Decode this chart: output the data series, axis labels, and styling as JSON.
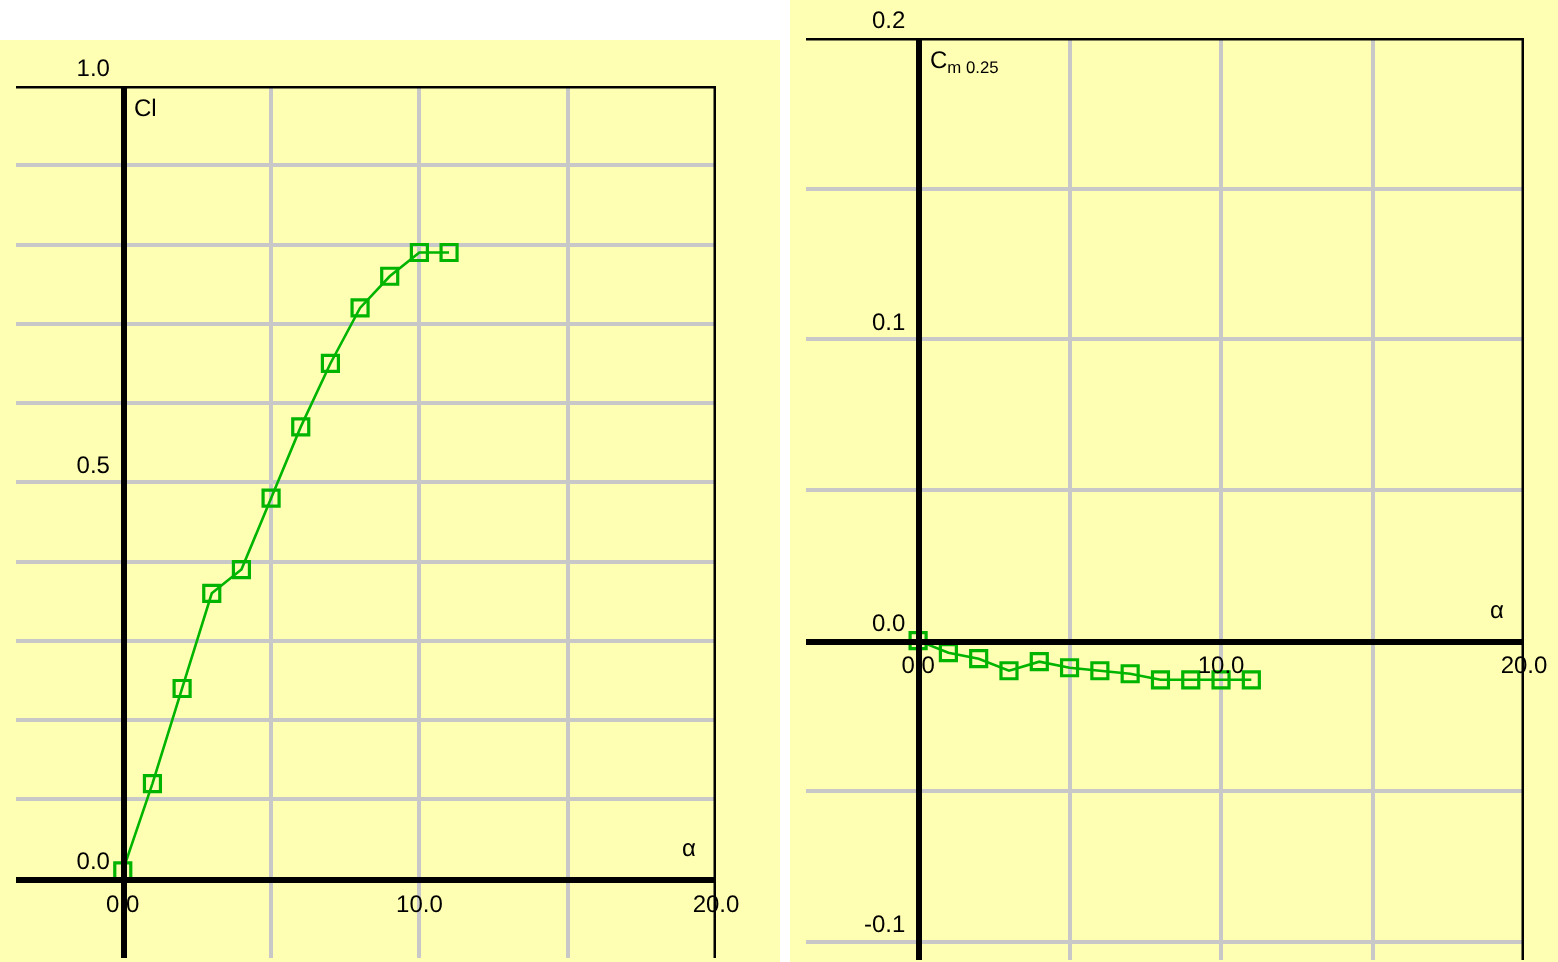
{
  "chart_data": [
    {
      "type": "line",
      "ylabel": "Cl",
      "xlabel": "α",
      "x": [
        0,
        1,
        2,
        3,
        4,
        5,
        6,
        7,
        8,
        9,
        10,
        11
      ],
      "series": [
        {
          "color": "#00b400",
          "values": [
            0.01,
            0.12,
            0.24,
            0.36,
            0.39,
            0.48,
            0.57,
            0.65,
            0.72,
            0.76,
            0.79,
            0.79
          ]
        }
      ],
      "xlim": [
        -3.6,
        20
      ],
      "ylim": [
        -0.1,
        1.0
      ],
      "xticks": [
        {
          "value": 0,
          "label": "0.0"
        },
        {
          "value": 5,
          "label": null
        },
        {
          "value": 10,
          "label": "10.0"
        },
        {
          "value": 15,
          "label": null
        },
        {
          "value": 20,
          "label": "20.0"
        }
      ],
      "yticks": [
        {
          "value": 0,
          "label": "0.0"
        },
        {
          "value": 0.1,
          "label": null
        },
        {
          "value": 0.2,
          "label": null
        },
        {
          "value": 0.3,
          "label": null
        },
        {
          "value": 0.4,
          "label": null
        },
        {
          "value": 0.5,
          "label": "0.5"
        },
        {
          "value": 0.6,
          "label": null
        },
        {
          "value": 0.7,
          "label": null
        },
        {
          "value": 0.8,
          "label": null
        },
        {
          "value": 0.9,
          "label": null
        },
        {
          "value": 1.0,
          "label": "1.0"
        }
      ],
      "grid": true,
      "marker": "square",
      "line_style": "solid"
    },
    {
      "type": "line",
      "ylabel": "C$_{m 0.25}$",
      "xlabel": "α",
      "x": [
        0,
        1,
        2,
        3,
        4,
        5,
        6,
        7,
        8,
        9,
        10,
        11
      ],
      "series": [
        {
          "color": "#00b400",
          "values": [
            0.0,
            -0.004,
            -0.006,
            -0.01,
            -0.007,
            -0.009,
            -0.01,
            -0.011,
            -0.013,
            -0.013,
            -0.013,
            -0.013
          ]
        }
      ],
      "xlim": [
        -3.7,
        20
      ],
      "ylim": [
        -0.106,
        0.2
      ],
      "xticks": [
        {
          "value": 0,
          "label": "0.0"
        },
        {
          "value": 5,
          "label": null
        },
        {
          "value": 10,
          "label": "10.0"
        },
        {
          "value": 15,
          "label": null
        },
        {
          "value": 20,
          "label": "20.0"
        }
      ],
      "yticks": [
        {
          "value": -0.1,
          "label": "-0.1"
        },
        {
          "value": -0.05,
          "label": null
        },
        {
          "value": 0,
          "label": "0.0"
        },
        {
          "value": 0.05,
          "label": null
        },
        {
          "value": 0.1,
          "label": "0.1"
        },
        {
          "value": 0.15,
          "label": null
        },
        {
          "value": 0.2,
          "label": "0.2"
        }
      ],
      "grid": true,
      "marker": "square",
      "line_style": "solid"
    }
  ]
}
